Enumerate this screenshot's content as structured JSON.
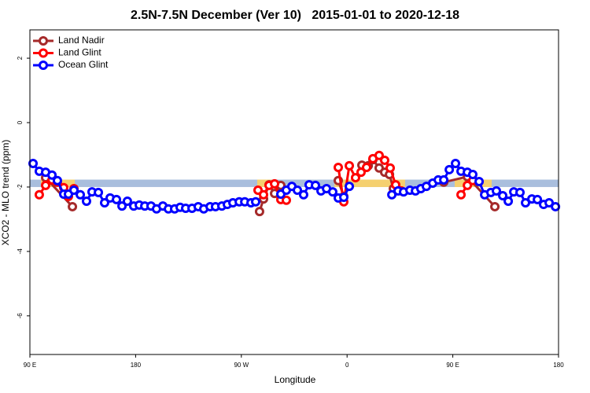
{
  "chart_data": {
    "type": "line",
    "title": "2.5N-7.5N December (Ver 10)   2015-01-01 to 2020-12-18",
    "xlabel": "Longitude",
    "ylabel": "XCO2 - MLO trend (ppm)",
    "xlim": [
      90,
      540
    ],
    "ylim": [
      -7.2,
      2.88
    ],
    "xticks": [
      {
        "value": 90,
        "label": "90 E"
      },
      180,
      {
        "value": 270,
        "label": "90 W"
      },
      {
        "value": 360,
        "label": "0"
      },
      {
        "value": 450,
        "label": "90 E"
      },
      180
    ],
    "yticks": [
      -6,
      -4,
      -2,
      0,
      2
    ],
    "legend": "top-left",
    "band": {
      "y": [
        -2.0,
        -1.77
      ],
      "color": "#a9bedd"
    },
    "highlights": {
      "color": "#f5d06f",
      "x": [
        [
          99.4,
          128.2
        ],
        [
          283.5,
          295.6
        ],
        [
          349.2,
          409.4
        ],
        [
          451.6,
          483.1
        ]
      ]
    },
    "series": [
      {
        "name": "Land Nadir",
        "color": "#a52a2a",
        "x": [
          103.4,
          126.2,
          null,
          285.5,
          288.9,
          293.6,
          298.3,
          303.6,
          null,
          352.5,
          357.2,
          null,
          372.6,
          378.0,
          382.0,
          387.3,
          392.0,
          396.1,
          399.4,
          403.4,
          null,
          442.3,
          462.4,
          485.8
        ],
        "values": [
          -1.71,
          -2.61,
          null,
          -2.76,
          -2.37,
          -1.93,
          -2.2,
          -1.95,
          null,
          -1.8,
          -2.29,
          null,
          -1.32,
          -1.34,
          -1.15,
          -1.41,
          -1.54,
          -1.61,
          -2.05,
          -2.1,
          null,
          -1.85,
          -1.68,
          -2.61
        ]
      },
      {
        "name": "Land Glint",
        "color": "#ff0000",
        "x": [
          98.0,
          103.4,
          108.8,
          113.4,
          118.8,
          122.8,
          127.5,
          null,
          284.2,
          288.9,
          293.6,
          298.3,
          303.6,
          308.3,
          null,
          352.5,
          357.2,
          361.9,
          367.2,
          371.9,
          376.6,
          382.0,
          387.3,
          392.0,
          396.7,
          401.4,
          406.1,
          null,
          457.0,
          462.4,
          467.0
        ],
        "values": [
          -2.24,
          -1.95,
          -1.78,
          -1.85,
          -2.02,
          -2.29,
          -2.05,
          null,
          -2.1,
          -2.24,
          -1.95,
          -1.9,
          -2.39,
          -2.41,
          null,
          -1.39,
          -2.46,
          -1.34,
          -1.71,
          -1.54,
          -1.39,
          -1.12,
          -1.02,
          -1.17,
          -1.41,
          -1.93,
          -2.12,
          null,
          -2.24,
          -1.95,
          -1.8
        ]
      },
      {
        "name": "Ocean Glint",
        "color": "#0000ff",
        "x": [
          92.7,
          98.0,
          103.4,
          108.8,
          113.4,
          118.8,
          122.8,
          127.5,
          132.9,
          138.2,
          142.9,
          148.3,
          153.6,
          158.3,
          163.7,
          168.4,
          173.0,
          178.4,
          183.1,
          187.8,
          193.1,
          197.8,
          203.2,
          207.9,
          213.2,
          217.9,
          222.6,
          228.0,
          233.3,
          238.0,
          243.4,
          248.0,
          253.4,
          258.1,
          262.8,
          268.2,
          272.9,
          278.2,
          282.2,
          null,
          303.6,
          308.3,
          313.0,
          317.7,
          323.0,
          327.7,
          333.1,
          337.8,
          342.5,
          347.8,
          352.5,
          357.2,
          361.9,
          null,
          398.1,
          403.4,
          408.1,
          413.5,
          418.2,
          422.8,
          427.5,
          432.9,
          437.6,
          442.3,
          447.0,
          452.3,
          457.0,
          462.4,
          467.0,
          472.4,
          477.1,
          482.4,
          487.1,
          492.5,
          497.2,
          501.9,
          507.2,
          511.9,
          517.3,
          522.0,
          527.3,
          532.0,
          537.4
        ],
        "values": [
          -1.27,
          -1.51,
          -1.54,
          -1.63,
          -1.8,
          -2.22,
          -2.22,
          -2.1,
          -2.24,
          -2.44,
          -2.15,
          -2.17,
          -2.49,
          -2.34,
          -2.39,
          -2.59,
          -2.44,
          -2.59,
          -2.56,
          -2.59,
          -2.59,
          -2.68,
          -2.59,
          -2.68,
          -2.68,
          -2.63,
          -2.66,
          -2.66,
          -2.61,
          -2.68,
          -2.61,
          -2.61,
          -2.59,
          -2.54,
          -2.49,
          -2.46,
          -2.46,
          -2.49,
          -2.46,
          null,
          -2.22,
          -2.1,
          -1.98,
          -2.1,
          -2.24,
          -1.93,
          -1.95,
          -2.12,
          -2.05,
          -2.15,
          -2.34,
          -2.32,
          -1.98,
          null,
          -2.24,
          -2.12,
          -2.15,
          -2.1,
          -2.12,
          -2.05,
          -1.98,
          -1.88,
          -1.78,
          -1.78,
          -1.46,
          -1.27,
          -1.51,
          -1.54,
          -1.61,
          -1.83,
          -2.24,
          -2.17,
          -2.12,
          -2.27,
          -2.44,
          -2.15,
          -2.17,
          -2.49,
          -2.37,
          -2.39,
          -2.54,
          -2.49,
          -2.61
        ]
      }
    ]
  }
}
